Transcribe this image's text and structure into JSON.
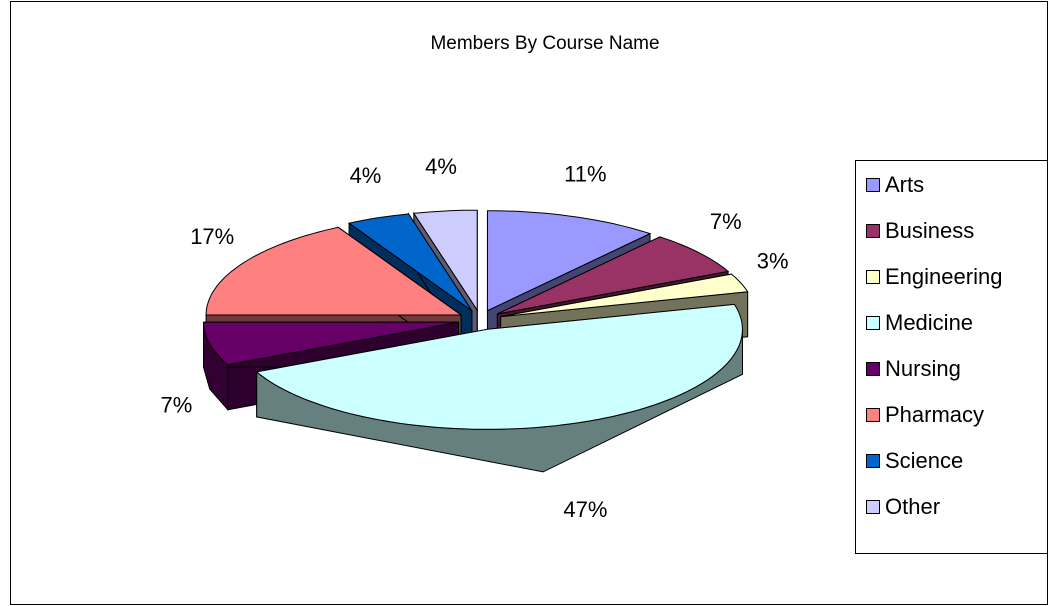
{
  "chart_data": {
    "type": "pie",
    "title": "Members By Course Name",
    "categories": [
      "Arts",
      "Business",
      "Engineering",
      "Medicine",
      "Nursing",
      "Pharmacy",
      "Science",
      "Other"
    ],
    "values": [
      11,
      7,
      3,
      47,
      7,
      17,
      4,
      4
    ],
    "value_labels": [
      "11%",
      "7%",
      "3%",
      "47%",
      "7%",
      "17%",
      "4%",
      "4%"
    ],
    "colors": [
      "#9999ff",
      "#993366",
      "#ffffcc",
      "#ccffff",
      "#660066",
      "#ff8080",
      "#0066cc",
      "#ccccff"
    ],
    "legend": "right"
  }
}
